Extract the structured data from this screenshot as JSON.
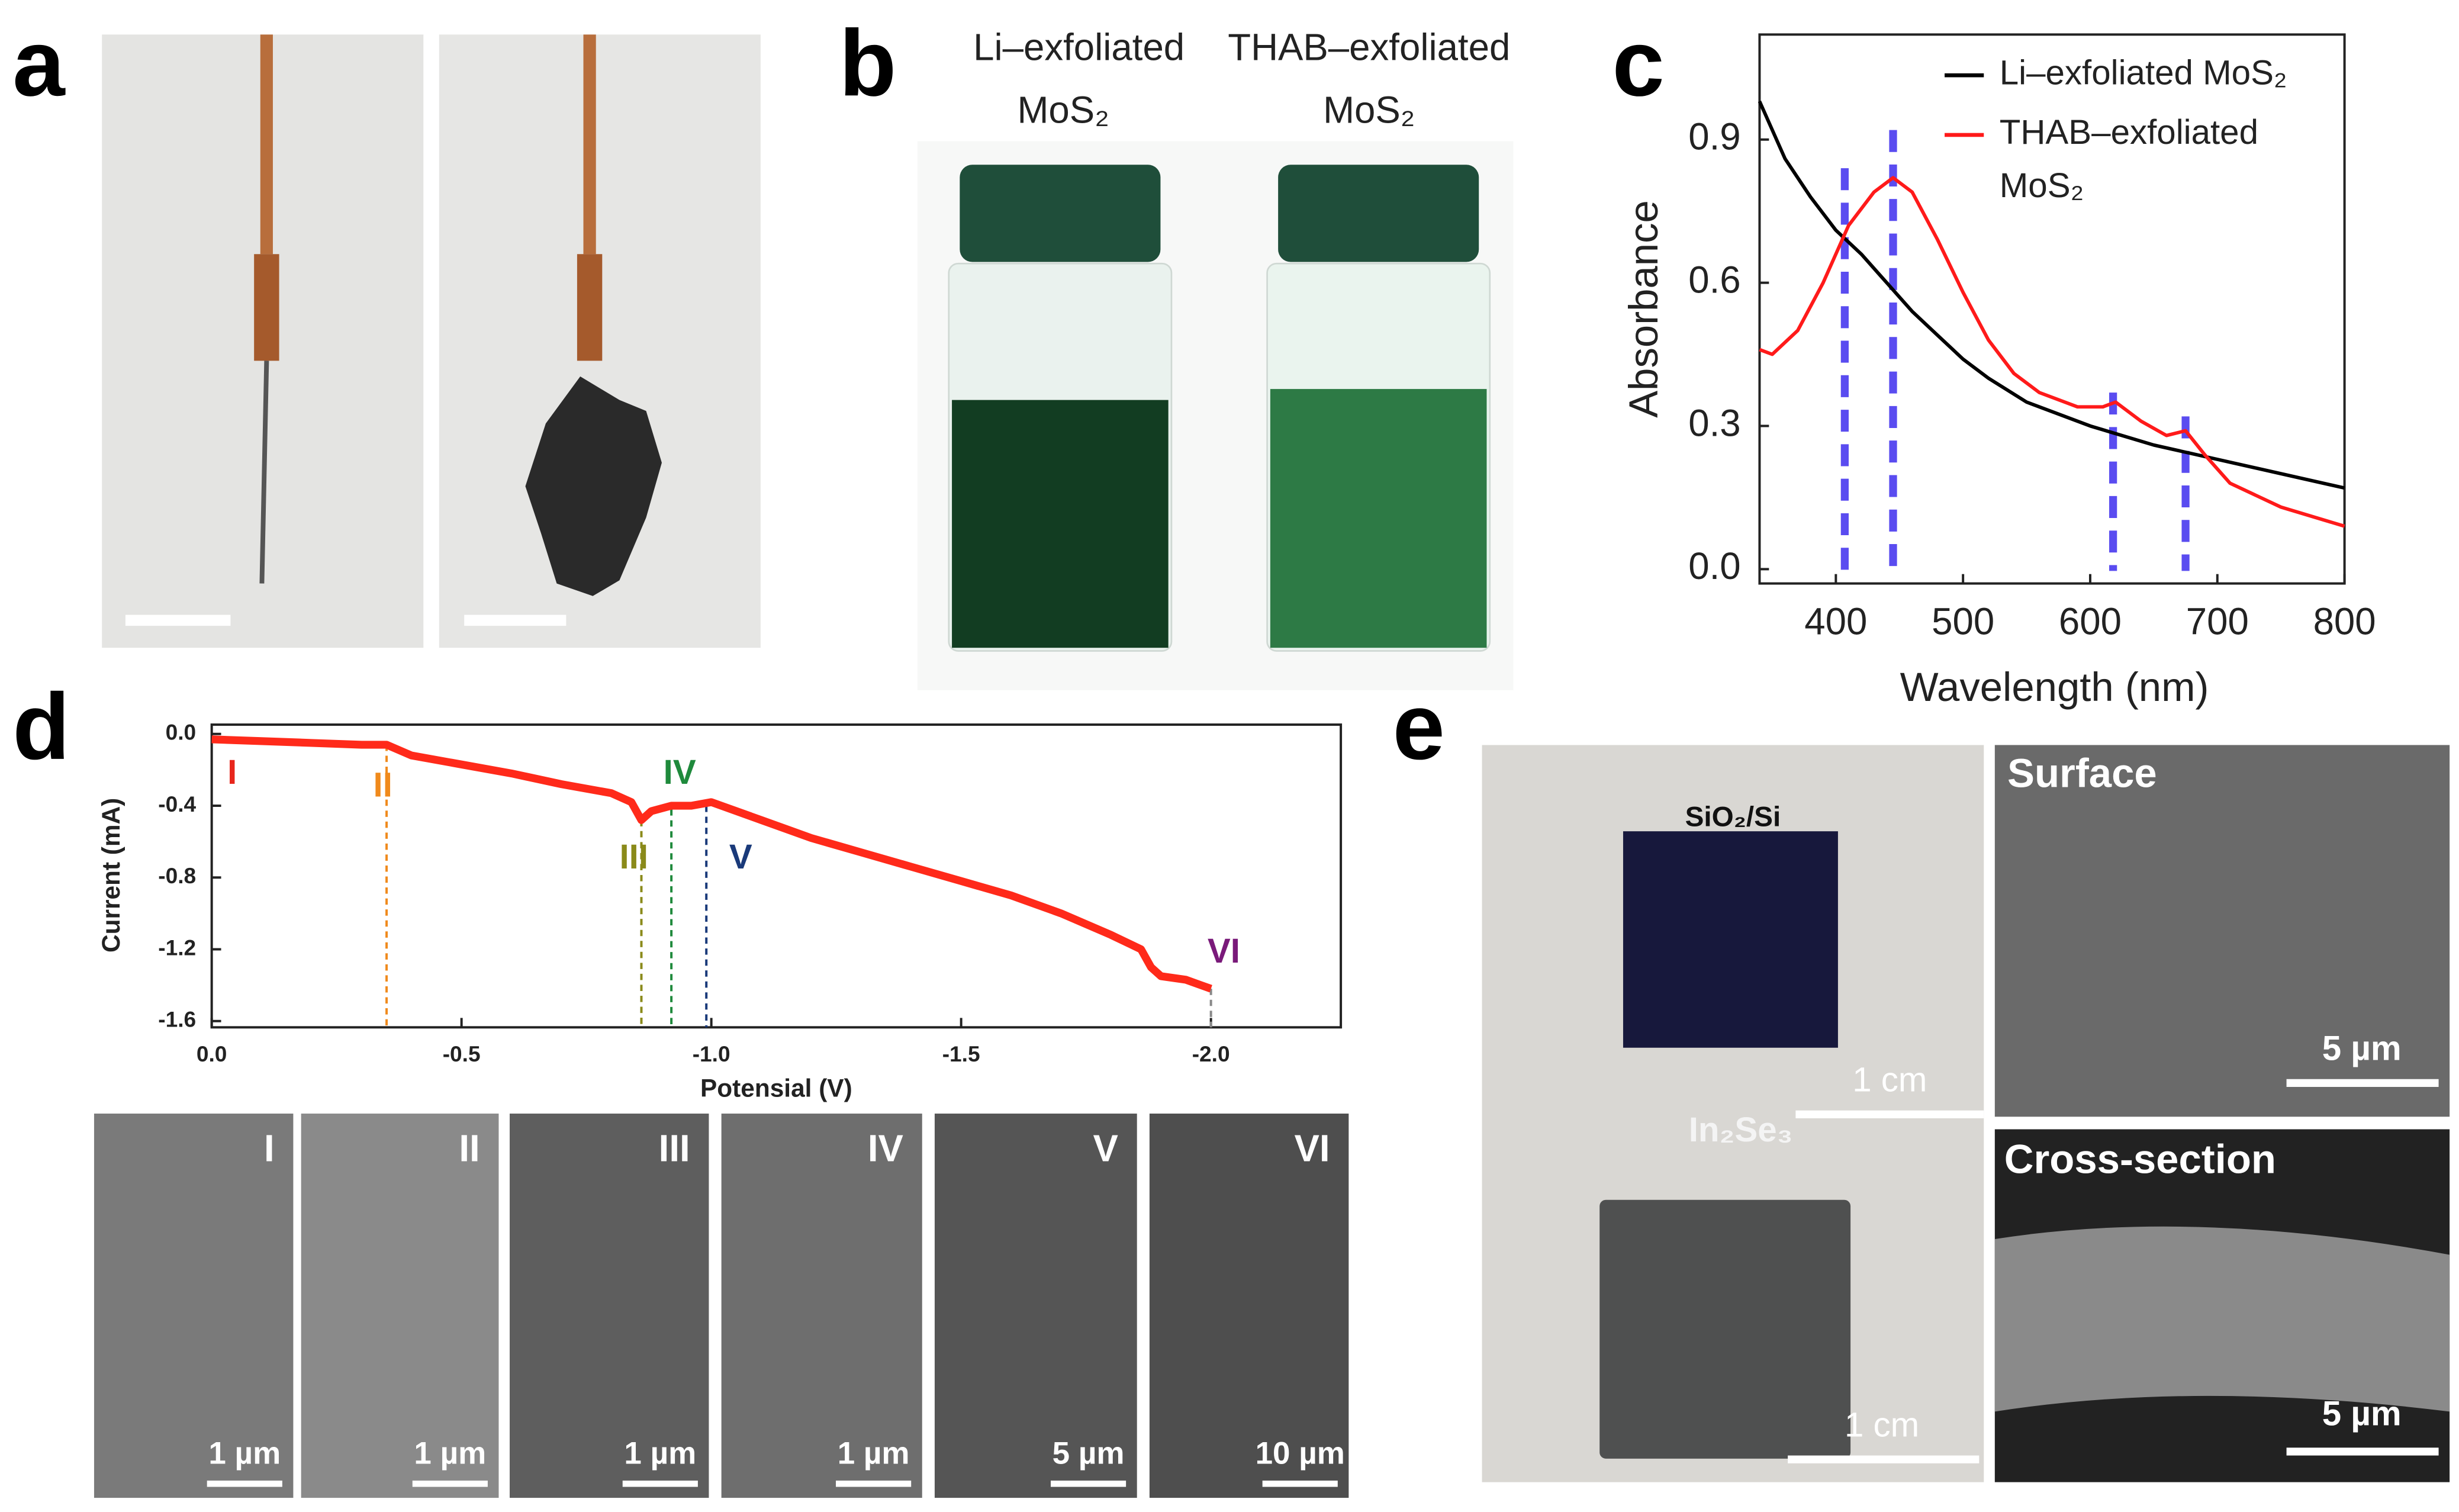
{
  "panel_labels": [
    "a",
    "b",
    "c",
    "d",
    "e"
  ],
  "panel_b": {
    "captions": [
      [
        "Li–exfoliated",
        "MoS₂"
      ],
      [
        "THAB–exfoliated",
        "MoS₂"
      ]
    ]
  },
  "chart_data": [
    {
      "type": "line",
      "xlabel": "Wavelength (nm)",
      "ylabel": "Absorbance",
      "xlim": [
        340,
        800
      ],
      "ylim": [
        -0.03,
        1.12
      ],
      "xticks": [
        400,
        500,
        600,
        700,
        800
      ],
      "yticks": [
        {
          "value": 0,
          "label": "0.0"
        },
        0.3,
        0.6,
        0.9
      ],
      "series": [
        {
          "name": "Li–exfoliated MoS₂",
          "color": "#000000",
          "x": [
            340,
            360,
            380,
            400,
            420,
            440,
            460,
            480,
            500,
            520,
            550,
            600,
            650,
            700,
            750,
            800
          ],
          "values": [
            0.98,
            0.86,
            0.78,
            0.71,
            0.66,
            0.6,
            0.54,
            0.49,
            0.44,
            0.4,
            0.35,
            0.3,
            0.26,
            0.23,
            0.2,
            0.17
          ]
        },
        {
          "name": "THAB–exfoliated MoS₂",
          "color": "#ff1a1a",
          "x": [
            340,
            350,
            370,
            390,
            410,
            430,
            445,
            460,
            480,
            500,
            520,
            540,
            560,
            590,
            610,
            620,
            640,
            660,
            675,
            690,
            710,
            750,
            800
          ],
          "values": [
            0.46,
            0.45,
            0.5,
            0.6,
            0.72,
            0.79,
            0.82,
            0.79,
            0.69,
            0.58,
            0.48,
            0.41,
            0.37,
            0.34,
            0.34,
            0.35,
            0.31,
            0.28,
            0.29,
            0.24,
            0.18,
            0.13,
            0.09
          ]
        }
      ],
      "vlines": [
        {
          "x": 407,
          "top": 0.84,
          "color": "#5a4cf0"
        },
        {
          "x": 445,
          "top": 0.92,
          "color": "#5a4cf0"
        },
        {
          "x": 618,
          "top": 0.37,
          "color": "#5a4cf0"
        },
        {
          "x": 675,
          "top": 0.32,
          "color": "#5a4cf0"
        }
      ]
    },
    {
      "type": "line",
      "xlabel": "Potensial (V)",
      "ylabel": "Current (mA)",
      "xlim": [
        0,
        -2.26
      ],
      "ylim": [
        -1.635,
        0.052
      ],
      "xticks": [
        {
          "value": 0,
          "label": "0.0"
        },
        -0.5,
        {
          "value": -1,
          "label": "-1.0"
        },
        -1.5,
        {
          "value": -2,
          "label": "-2.0"
        }
      ],
      "yticks": [
        {
          "value": 0,
          "label": "0.0"
        },
        -0.4,
        -0.8,
        -1.2,
        -1.6
      ],
      "series": [
        {
          "color": "#ff2a1a",
          "x": [
            0,
            -0.1,
            -0.2,
            -0.3,
            -0.35,
            -0.4,
            -0.5,
            -0.6,
            -0.7,
            -0.8,
            -0.84,
            -0.86,
            -0.88,
            -0.92,
            -0.96,
            -1,
            -1.1,
            -1.2,
            -1.3,
            -1.4,
            -1.5,
            -1.6,
            -1.7,
            -1.8,
            -1.86,
            -1.88,
            -1.9,
            -1.95,
            -2
          ],
          "values": [
            -0.03,
            -0.04,
            -0.05,
            -0.06,
            -0.06,
            -0.12,
            -0.17,
            -0.22,
            -0.28,
            -0.33,
            -0.38,
            -0.48,
            -0.43,
            -0.4,
            -0.4,
            -0.38,
            -0.48,
            -0.58,
            -0.66,
            -0.74,
            -0.82,
            -0.9,
            -1,
            -1.12,
            -1.2,
            -1.3,
            -1.35,
            -1.37,
            -1.42
          ]
        }
      ],
      "vlines": [
        {
          "x": -0.35,
          "top": -0.06,
          "color": "#f08a1c"
        },
        {
          "x": -0.86,
          "top": -0.48,
          "color": "#8a8a1a"
        },
        {
          "x": -0.92,
          "top": -0.42,
          "color": "#1f8a3c"
        },
        {
          "x": -0.99,
          "top": -0.4,
          "color": "#1a3a7a"
        },
        {
          "x": -2,
          "top": -1.42,
          "color": "#888888"
        }
      ],
      "annotations": [
        {
          "text": "I",
          "color": "#e8261c"
        },
        {
          "text": "II",
          "color": "#f08a1c"
        },
        {
          "text": "III",
          "color": "#8a8a1a"
        },
        {
          "text": "IV",
          "color": "#1f8a3c"
        },
        {
          "text": "V",
          "color": "#1a3a7a"
        },
        {
          "text": "VI",
          "color": "#7a1a7a"
        }
      ]
    }
  ],
  "panel_d_sem": {
    "labels": [
      "I",
      "II",
      "III",
      "IV",
      "V",
      "VI"
    ],
    "scale_bars": [
      "1 µm",
      "1 µm",
      "1 µm",
      "1 µm",
      "5 µm",
      "10 µm"
    ]
  },
  "panel_e": {
    "sample_labels": [
      "SiO₂/Si",
      "In₂Se₃"
    ],
    "photo_scale_bars": [
      "1 cm",
      "1 cm"
    ],
    "sem_titles": [
      "Surface",
      "Cross-section"
    ],
    "sem_scale_bars": [
      "5 µm",
      "5 µm"
    ]
  }
}
